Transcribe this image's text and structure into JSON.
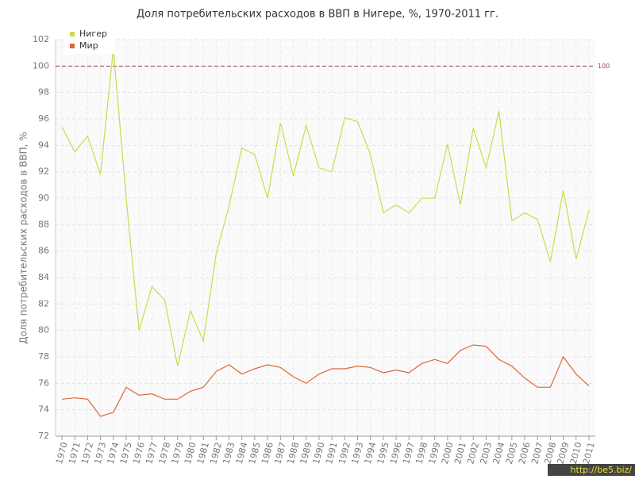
{
  "chart_data": {
    "type": "line",
    "title": "Доля потребительских расходов в ВВП в Нигере, %, 1970-2011 гг.",
    "y_label": "Доля потребительских расходов в ВВП, %",
    "categories": [
      "1970",
      "1971",
      "1972",
      "1973",
      "1974",
      "1975",
      "1976",
      "1977",
      "1978",
      "1979",
      "1980",
      "1981",
      "1982",
      "1983",
      "1984",
      "1985",
      "1986",
      "1987",
      "1988",
      "1989",
      "1990",
      "1991",
      "1992",
      "1993",
      "1994",
      "1995",
      "1996",
      "1997",
      "1998",
      "1999",
      "2000",
      "2001",
      "2002",
      "2003",
      "2004",
      "2005",
      "2006",
      "2007",
      "2008",
      "2009",
      "2010",
      "2011"
    ],
    "series": [
      {
        "name": "Нигер",
        "color": "#c5de4a",
        "values": [
          95.4,
          93.5,
          94.7,
          91.8,
          101.3,
          90.0,
          80.0,
          83.3,
          82.3,
          77.3,
          81.5,
          79.2,
          85.8,
          89.4,
          93.8,
          93.3,
          90.0,
          95.7,
          91.7,
          95.5,
          92.3,
          92.0,
          96.1,
          95.8,
          93.3,
          88.9,
          89.5,
          88.9,
          90.0,
          90.0,
          94.1,
          89.5,
          95.3,
          92.3,
          96.6,
          88.3,
          88.9,
          88.4,
          85.2,
          90.6,
          85.4,
          89.1
        ]
      },
      {
        "name": "Мир",
        "color": "#e0663a",
        "values": [
          74.8,
          74.9,
          74.8,
          73.5,
          73.8,
          75.7,
          75.1,
          75.2,
          74.8,
          74.8,
          75.4,
          75.7,
          76.9,
          77.4,
          76.7,
          77.1,
          77.4,
          77.2,
          76.5,
          76.0,
          76.7,
          77.1,
          77.1,
          77.3,
          77.2,
          76.8,
          77.0,
          76.8,
          77.5,
          77.8,
          77.5,
          78.5,
          78.9,
          78.8,
          77.8,
          77.3,
          76.4,
          75.7,
          75.7,
          78.0,
          76.7,
          75.8
        ]
      }
    ],
    "ylim": [
      72,
      102
    ],
    "yticks": [
      72,
      74,
      76,
      78,
      80,
      82,
      84,
      86,
      88,
      90,
      92,
      94,
      96,
      98,
      100,
      102
    ],
    "grid": true,
    "reference_line": {
      "value": 100,
      "color": "#a0405a"
    },
    "legend": "top-left",
    "watermark": "http://be5.biz/"
  }
}
